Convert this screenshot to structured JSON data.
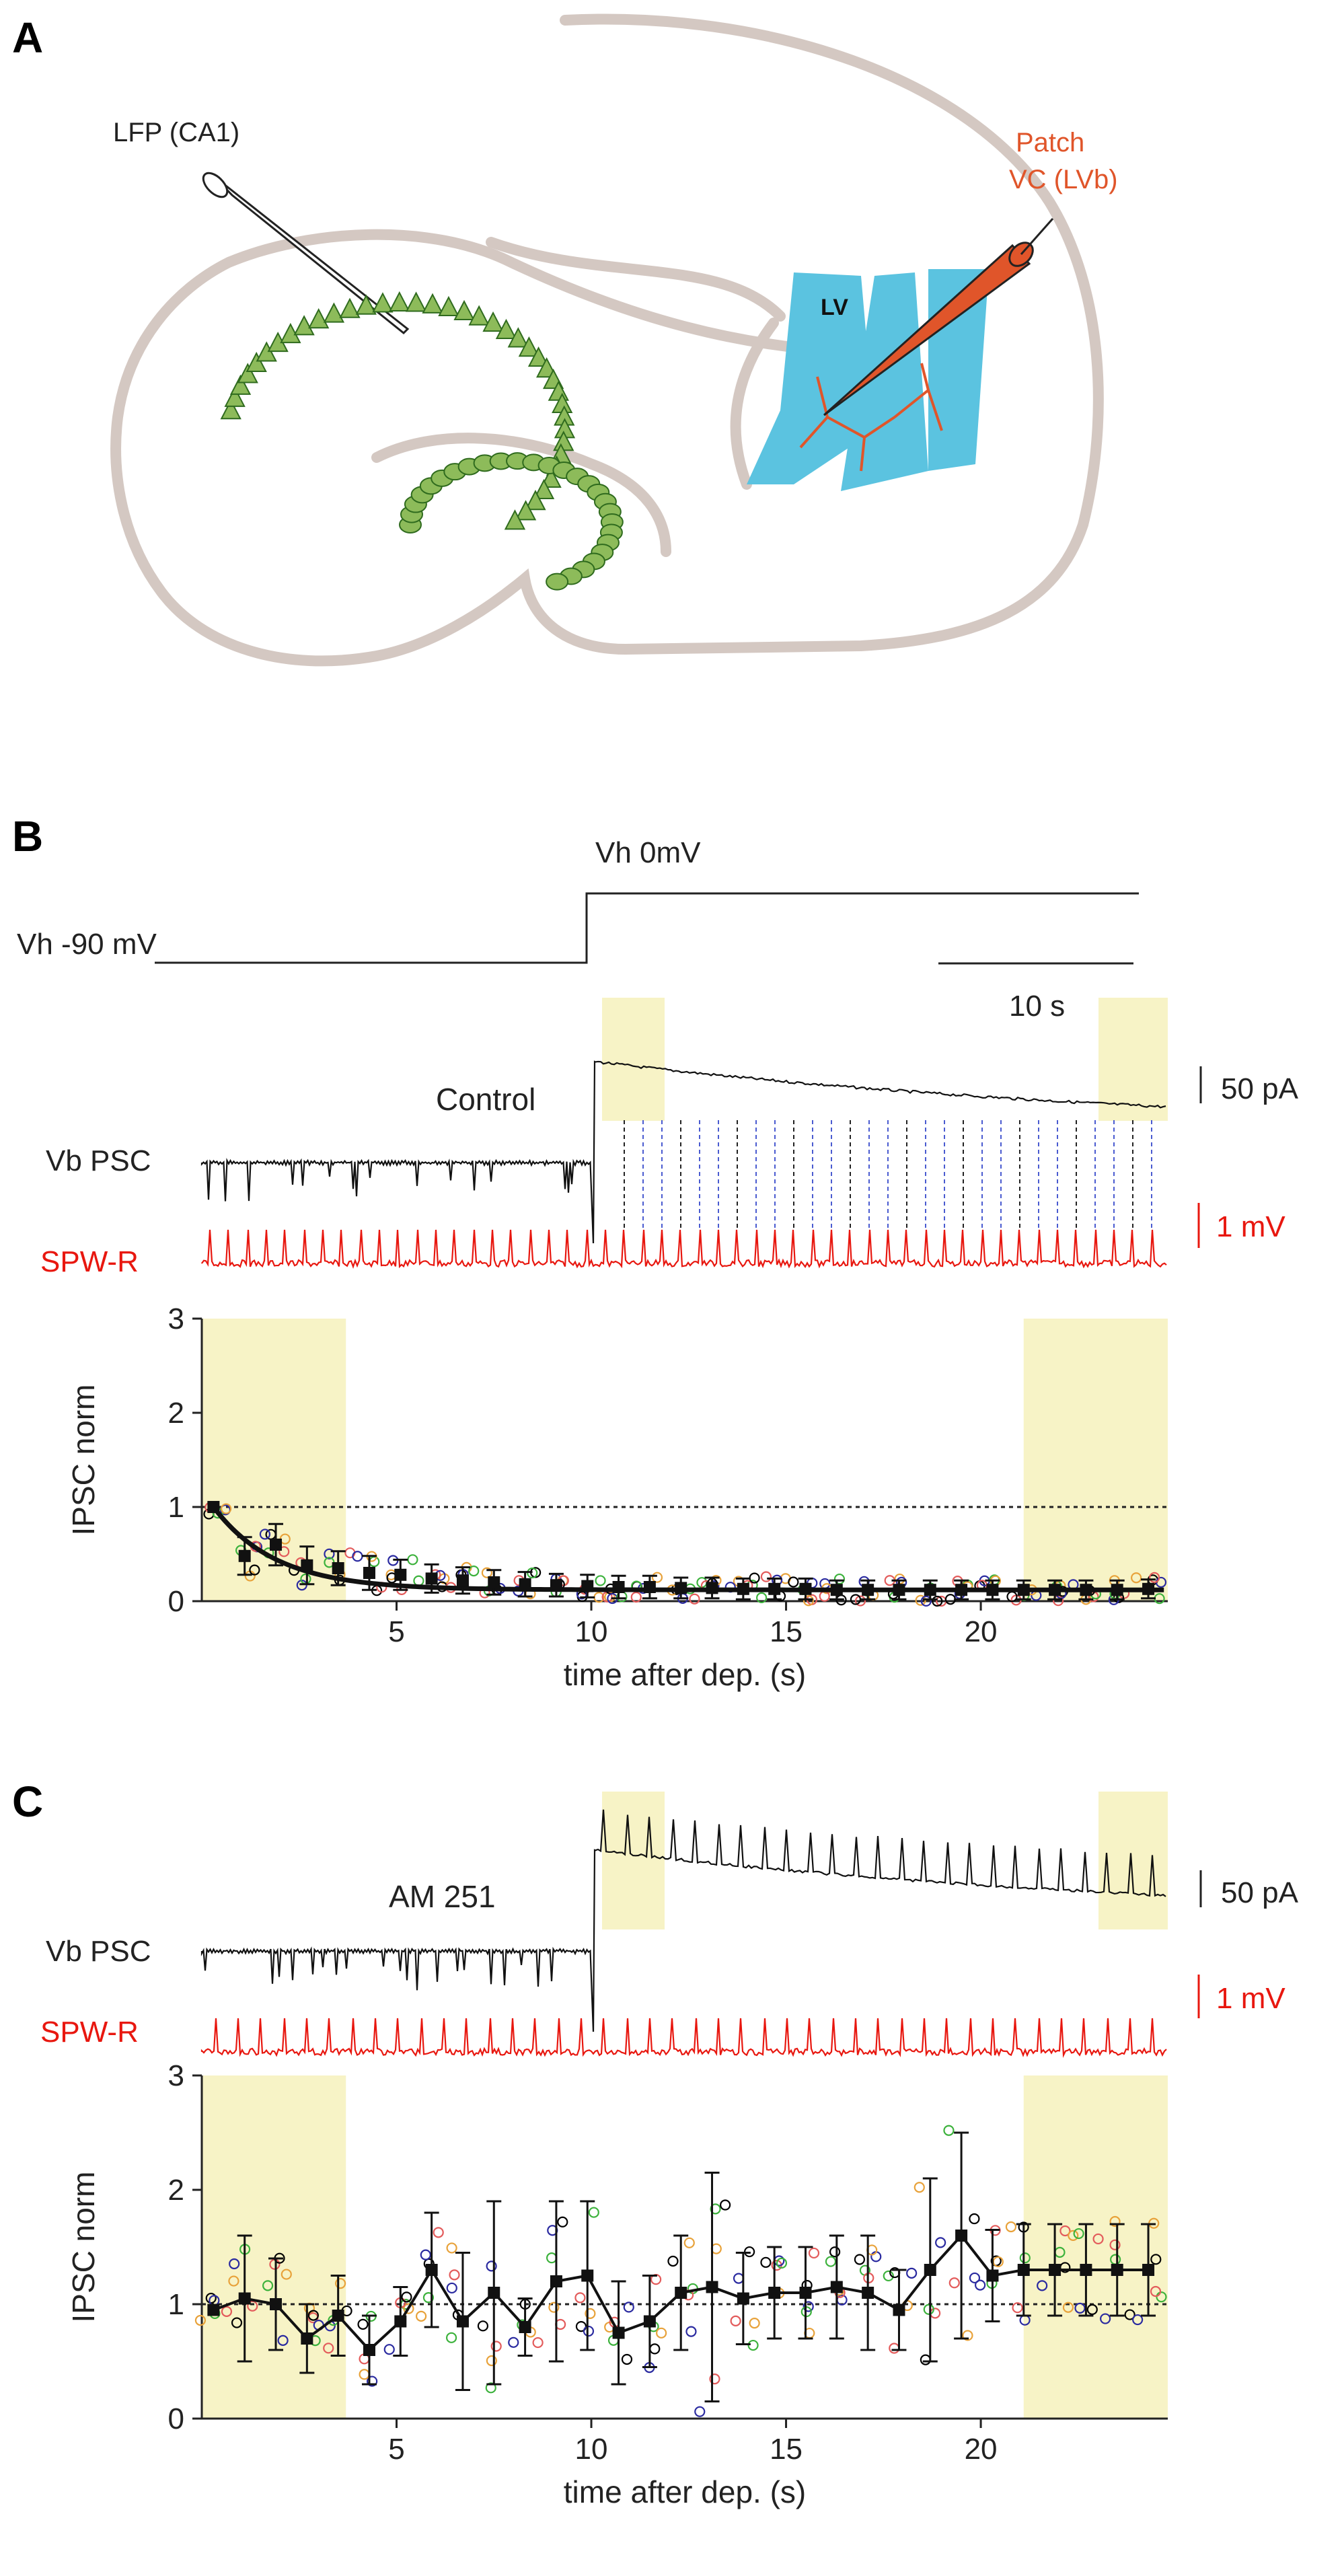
{
  "panels": {
    "A": {
      "label": "A",
      "lfp_label": "LFP (CA1)",
      "patch_label_1": "Patch",
      "patch_label_2": "VC (LVb)",
      "lv_label": "LV"
    },
    "B": {
      "label": "B",
      "vh_high": "Vh 0mV",
      "vh_low": "Vh -90 mV",
      "time_scale": "10 s",
      "condition": "Control",
      "current_scale": "50 pA",
      "voltage_scale": "1 mV",
      "trace_psc": "Vb PSC",
      "trace_spw": "SPW-R"
    },
    "C": {
      "label": "C",
      "condition": "AM 251",
      "current_scale": "50 pA",
      "voltage_scale": "1 mV",
      "trace_psc": "Vb PSC",
      "trace_spw": "SPW-R"
    }
  },
  "colors": {
    "black": "#000000",
    "red": "#e8170f",
    "patch_orange": "#e0552a",
    "tissue": "#d4c8c2",
    "neuron_green": "#8dbb5a",
    "neuron_edge": "#2f6b1e",
    "layer_blue": "#5bc3e0",
    "highlight": "#f7f3c6",
    "open_circle_colors": [
      "#000000",
      "#2a2aa0",
      "#3cb23c",
      "#e8a23a",
      "#e35b5b"
    ]
  },
  "chart_data": [
    {
      "panel": "B",
      "type": "scatter",
      "title": "",
      "xlabel": "time after dep. (s)",
      "ylabel": "IPSC norm",
      "xlim": [
        0,
        24.8
      ],
      "ylim": [
        0,
        3
      ],
      "xticks": [
        5,
        10,
        15,
        20
      ],
      "yticks": [
        0,
        1,
        2,
        3
      ],
      "reference_line": 1,
      "shaded_x_ranges": [
        [
          0,
          3.7
        ],
        [
          21.1,
          24.8
        ]
      ],
      "mean_series": {
        "x": [
          0.3,
          1.1,
          1.9,
          2.7,
          3.5,
          4.3,
          5.1,
          5.9,
          6.7,
          7.5,
          8.3,
          9.1,
          9.9,
          10.7,
          11.5,
          12.3,
          13.1,
          13.9,
          14.7,
          15.5,
          16.3,
          17.1,
          17.9,
          18.7,
          19.5,
          20.3,
          21.1,
          21.9,
          22.7,
          23.5,
          24.3
        ],
        "y": [
          1.0,
          0.48,
          0.6,
          0.38,
          0.35,
          0.3,
          0.28,
          0.24,
          0.22,
          0.2,
          0.18,
          0.17,
          0.16,
          0.15,
          0.15,
          0.14,
          0.14,
          0.13,
          0.13,
          0.13,
          0.12,
          0.12,
          0.12,
          0.12,
          0.12,
          0.12,
          0.12,
          0.12,
          0.12,
          0.12,
          0.13
        ],
        "err": [
          0.0,
          0.2,
          0.22,
          0.2,
          0.18,
          0.18,
          0.16,
          0.15,
          0.14,
          0.13,
          0.13,
          0.12,
          0.12,
          0.12,
          0.12,
          0.11,
          0.11,
          0.11,
          0.11,
          0.11,
          0.1,
          0.1,
          0.1,
          0.1,
          0.1,
          0.1,
          0.1,
          0.1,
          0.1,
          0.1,
          0.1
        ]
      },
      "fit": {
        "form": "exponential decay",
        "start": 1.0,
        "plateau": 0.12,
        "tau": 1.6
      }
    },
    {
      "panel": "C",
      "type": "scatter",
      "title": "",
      "xlabel": "time after dep. (s)",
      "ylabel": "IPSC norm",
      "xlim": [
        0,
        24.8
      ],
      "ylim": [
        0,
        3
      ],
      "xticks": [
        5,
        10,
        15,
        20
      ],
      "yticks": [
        0,
        1,
        2,
        3
      ],
      "reference_line": 1,
      "shaded_x_ranges": [
        [
          0,
          3.7
        ],
        [
          21.1,
          24.8
        ]
      ],
      "mean_series": {
        "x": [
          0.3,
          1.1,
          1.9,
          2.7,
          3.5,
          4.3,
          5.1,
          5.9,
          6.7,
          7.5,
          8.3,
          9.1,
          9.9,
          10.7,
          11.5,
          12.3,
          13.1,
          13.9,
          14.7,
          15.5,
          16.3,
          17.1,
          17.9,
          18.7,
          19.5,
          20.3,
          21.1,
          21.9,
          22.7,
          23.5,
          24.3
        ],
        "y": [
          0.95,
          1.05,
          1.0,
          0.7,
          0.9,
          0.6,
          0.85,
          1.3,
          0.85,
          1.1,
          0.8,
          1.2,
          1.25,
          0.75,
          0.85,
          1.1,
          1.15,
          1.05,
          1.1,
          1.1,
          1.15,
          1.1,
          0.95,
          1.3,
          1.6,
          1.25,
          1.3,
          1.3,
          1.3,
          1.3,
          1.3
        ],
        "err": [
          0.0,
          0.55,
          0.4,
          0.3,
          0.35,
          0.3,
          0.3,
          0.5,
          0.6,
          0.8,
          0.25,
          0.7,
          0.65,
          0.45,
          0.4,
          0.5,
          1.0,
          0.4,
          0.4,
          0.4,
          0.45,
          0.5,
          0.35,
          0.8,
          0.9,
          0.4,
          0.4,
          0.4,
          0.4,
          0.4,
          0.4
        ]
      }
    }
  ]
}
